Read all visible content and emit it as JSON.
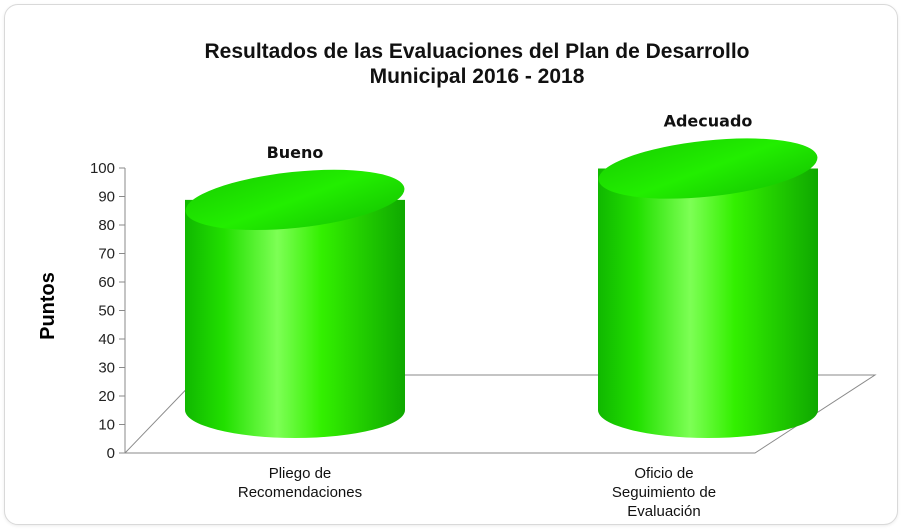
{
  "chart_data": {
    "type": "bar",
    "title_lines": [
      "Resultados de las Evaluaciones del Plan de Desarrollo",
      "Municipal 2016 - 2018"
    ],
    "ylabel": "Puntos",
    "xlabel": "",
    "ylim": [
      0,
      100
    ],
    "yticks": [
      "0",
      "10",
      "20",
      "30",
      "40",
      "50",
      "60",
      "70",
      "80",
      "90",
      "100"
    ],
    "categories": [
      [
        "Pliego de",
        "Recomendaciones"
      ],
      [
        "Oficio de",
        "Seguimiento de",
        "Evaluación"
      ]
    ],
    "values": [
      86,
      97
    ],
    "data_labels": [
      "Bueno",
      "Adecuado"
    ],
    "bar_shape": "cylinder",
    "bar_color": "#22ee00",
    "grid": false,
    "legend": "none"
  }
}
